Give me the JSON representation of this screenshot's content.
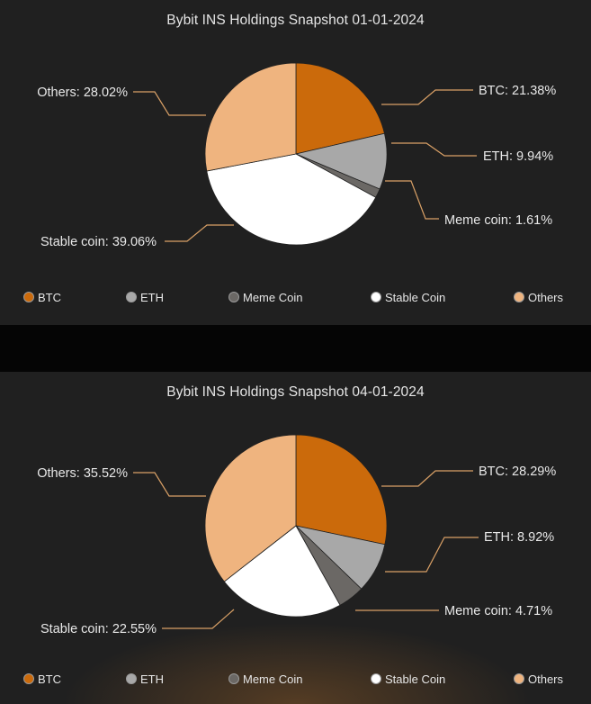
{
  "colors": {
    "BTC": "#cb6a0b",
    "ETH": "#a8a8a8",
    "Meme Coin": "#6b6865",
    "Stable Coin": "#ffffff",
    "Others": "#efb47f",
    "callout_line": "#d9a066"
  },
  "legend": [
    "BTC",
    "ETH",
    "Meme Coin",
    "Stable Coin",
    "Others"
  ],
  "chart_data": [
    {
      "type": "pie",
      "title": "Bybit INS Holdings Snapshot 01-01-2024",
      "slices": [
        {
          "name": "BTC",
          "value": 21.38,
          "label": "BTC: 21.38%"
        },
        {
          "name": "ETH",
          "value": 9.94,
          "label": "ETH: 9.94%"
        },
        {
          "name": "Meme Coin",
          "value": 1.61,
          "label": "Meme coin: 1.61%"
        },
        {
          "name": "Stable Coin",
          "value": 39.06,
          "label": "Stable coin: 39.06%"
        },
        {
          "name": "Others",
          "value": 28.02,
          "label": "Others: 28.02%"
        }
      ],
      "legend_position": "bottom"
    },
    {
      "type": "pie",
      "title": "Bybit INS Holdings Snapshot 04-01-2024",
      "slices": [
        {
          "name": "BTC",
          "value": 28.29,
          "label": "BTC: 28.29%"
        },
        {
          "name": "ETH",
          "value": 8.92,
          "label": "ETH: 8.92%"
        },
        {
          "name": "Meme Coin",
          "value": 4.71,
          "label": "Meme coin: 4.71%"
        },
        {
          "name": "Stable Coin",
          "value": 22.55,
          "label": "Stable coin: 22.55%"
        },
        {
          "name": "Others",
          "value": 35.52,
          "label": "Others: 35.52%"
        }
      ],
      "legend_position": "bottom"
    }
  ]
}
